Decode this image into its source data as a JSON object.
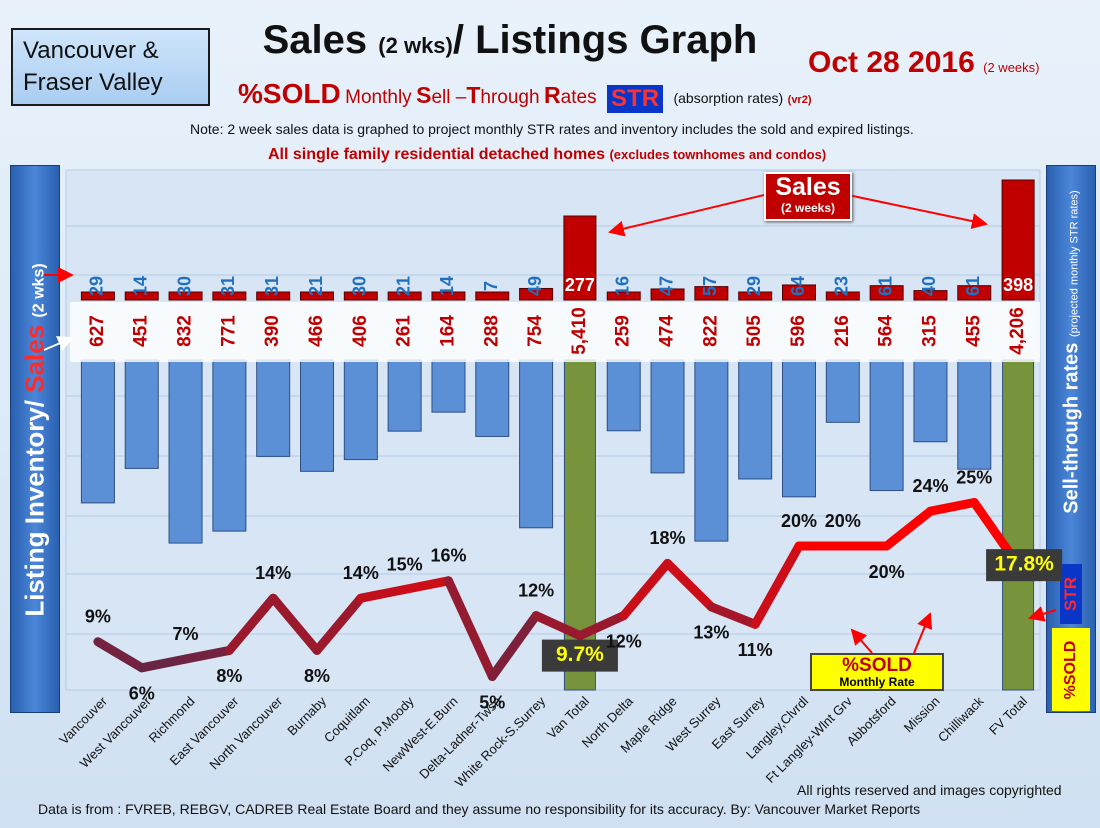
{
  "header": {
    "region_line1": "Vancouver &",
    "region_line2": "Fraser Valley",
    "title_main1": "Sales",
    "title_small": "(2 wks)",
    "title_main2": "/ Listings Graph",
    "date": "Oct 28 2016",
    "date_note": "(2 weeks)",
    "subtitle_sold": "%SOLD",
    "subtitle_monthly": "Monthly",
    "subtitle_s": "S",
    "subtitle_ell": "ell",
    "subtitle_dash": " –",
    "subtitle_t": "T",
    "subtitle_hrough": "hrough",
    "subtitle_r": "R",
    "subtitle_ates": "ates",
    "str_badge": "STR",
    "absorption": "(absorption rates)",
    "version": "(vr2)",
    "note": "Note: 2 week sales data is graphed to project monthly STR rates and inventory includes the sold and expired listings.",
    "scope_main": "All single family residential detached homes",
    "scope_small": "(excludes townhomes and condos)"
  },
  "left_axis": {
    "inventory": "Listing Inventory/",
    "sales": "Sales",
    "small": "(2 wks)"
  },
  "right_axis": {
    "str": "STR",
    "label": "Sell-through rates",
    "label_small": "(projected monthly STR rates)",
    "sold": "%SOLD"
  },
  "callouts": {
    "sales_big": "Sales",
    "sales_small": "(2 weeks)",
    "sold_big": "%SOLD",
    "sold_small": "Monthly Rate"
  },
  "footer": {
    "copyright": "All rights reserved and  images copyrighted",
    "source": "Data is from : FVREB, REBGV, CADREB Real Estate Board and they assume no responsibility for its accuracy.  By: Vancouver Market Reports"
  },
  "colors": {
    "sales_bar": "#c00000",
    "inventory_bar": "#5b8fd6",
    "total_bar": "#77933c",
    "sales_label": "#2070c0",
    "inventory_label": "#c00000",
    "line_low": "#1f3864",
    "line_high": "#ff0000"
  },
  "chart_data": {
    "type": "bar",
    "categories": [
      "Vancouver",
      "West Vancouver",
      "Richmond",
      "East Vancouver",
      "North Vancouver",
      "Burnaby",
      "Coquitlam",
      "P.Coq, P.Moody",
      "NewWest-E.Burn",
      "Delta-Ladner-Twsn",
      "White Rock-S.Surrey",
      "Van Total",
      "North Delta",
      "Maple Ridge",
      "West Surrey",
      "East Surrey",
      "Langley,Clvrdl",
      "Ft Langley-Wlnt Grv",
      "Abbotsford",
      "Mission",
      "Chilliwack",
      "FV Total"
    ],
    "totals": [
      "Van Total",
      "FV Total"
    ],
    "series": [
      {
        "name": "Sales",
        "values": [
          29,
          14,
          30,
          31,
          31,
          21,
          30,
          21,
          14,
          7,
          49,
          277,
          16,
          47,
          57,
          29,
          64,
          23,
          61,
          40,
          61,
          398
        ]
      },
      {
        "values": [
          627,
          451,
          832,
          771,
          390,
          466,
          406,
          261,
          164,
          288,
          754,
          5410,
          259,
          474,
          822,
          505,
          596,
          216,
          564,
          315,
          455,
          4206
        ]
      },
      {
        "name": "%SOLD",
        "values": [
          9,
          6,
          7,
          8,
          14,
          8,
          14,
          15,
          16,
          5,
          12,
          9.7,
          12,
          18,
          13,
          11,
          20,
          20,
          20,
          24,
          25,
          17.8
        ]
      }
    ],
    "sales_labels": [
      "29",
      "14",
      "30",
      "31",
      "31",
      "21",
      "30",
      "21",
      "14",
      "7",
      "49",
      "277",
      "16",
      "47",
      "57",
      "29",
      "64",
      "23",
      "61",
      "40",
      "61",
      "398"
    ],
    "inventory_labels": [
      "627",
      "451",
      "832",
      "771",
      "390",
      "466",
      "406",
      "261",
      "164",
      "288",
      "754",
      "5,410",
      "259",
      "474",
      "822",
      "505",
      "596",
      "216",
      "564",
      "315",
      "455",
      "4,206"
    ],
    "str_labels": [
      "9%",
      "6%",
      "7%",
      "8%",
      "14%",
      "8%",
      "14%",
      "15%",
      "16%",
      "5%",
      "12%",
      "9.7%",
      "12%",
      "18%",
      "13%",
      "11%",
      "20%",
      "20%",
      "20%",
      "24%",
      "25%",
      "17.8%"
    ],
    "grid": true
  }
}
